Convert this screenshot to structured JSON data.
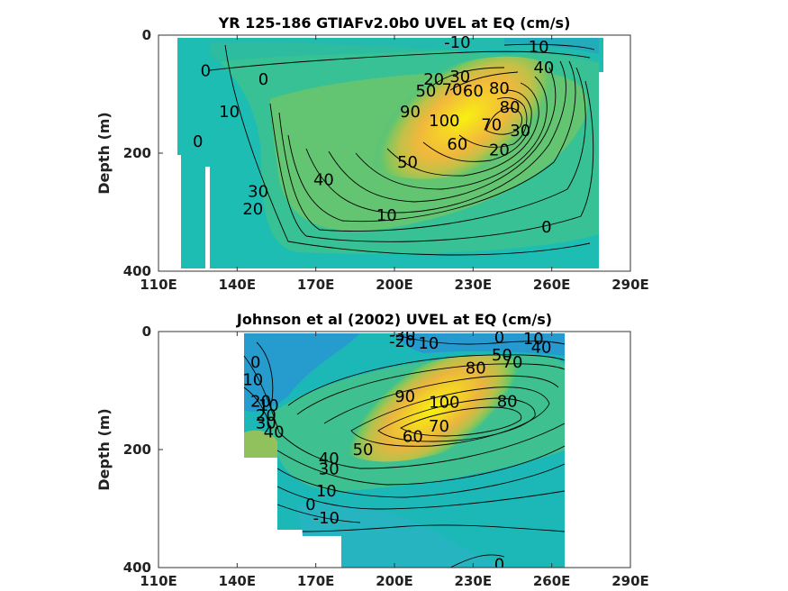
{
  "chart_data": [
    {
      "type": "heatmap",
      "title": "YR 125-186 GTIAFv2.0b0 UVEL at EQ (cm/s)",
      "ylabel": "Depth (m)",
      "xlabel": "",
      "x_ticks": [
        "110E",
        "140E",
        "170E",
        "200E",
        "230E",
        "260E",
        "290E"
      ],
      "x_tick_values": [
        110,
        140,
        170,
        200,
        230,
        260,
        290
      ],
      "y_ticks": [
        "0",
        "200",
        "400"
      ],
      "y_tick_values": [
        0,
        200,
        400
      ],
      "xlim": [
        110,
        290
      ],
      "ylim": [
        400,
        0
      ],
      "colormap": "parula",
      "core": {
        "x": 227,
        "y": 140,
        "max_value": 100
      },
      "contour_labels": [
        {
          "text": "-10",
          "x": 224,
          "y": 12
        },
        {
          "text": "10",
          "x": 255,
          "y": 20
        },
        {
          "text": "40",
          "x": 257,
          "y": 55
        },
        {
          "text": "0",
          "x": 128,
          "y": 60
        },
        {
          "text": "0",
          "x": 150,
          "y": 75
        },
        {
          "text": "20",
          "x": 215,
          "y": 75
        },
        {
          "text": "30",
          "x": 225,
          "y": 70
        },
        {
          "text": "50",
          "x": 212,
          "y": 95
        },
        {
          "text": "70",
          "x": 222,
          "y": 92
        },
        {
          "text": "60",
          "x": 230,
          "y": 95
        },
        {
          "text": "80",
          "x": 240,
          "y": 90
        },
        {
          "text": "10",
          "x": 137,
          "y": 130
        },
        {
          "text": "90",
          "x": 206,
          "y": 130
        },
        {
          "text": "100",
          "x": 219,
          "y": 145
        },
        {
          "text": "80",
          "x": 244,
          "y": 122
        },
        {
          "text": "70",
          "x": 237,
          "y": 152
        },
        {
          "text": "30",
          "x": 248,
          "y": 162
        },
        {
          "text": "20",
          "x": 240,
          "y": 195
        },
        {
          "text": "60",
          "x": 224,
          "y": 185
        },
        {
          "text": "50",
          "x": 205,
          "y": 215
        },
        {
          "text": "0",
          "x": 125,
          "y": 180
        },
        {
          "text": "40",
          "x": 173,
          "y": 245
        },
        {
          "text": "30",
          "x": 148,
          "y": 265
        },
        {
          "text": "20",
          "x": 146,
          "y": 295
        },
        {
          "text": "10",
          "x": 197,
          "y": 305
        },
        {
          "text": "0",
          "x": 258,
          "y": 325
        }
      ]
    },
    {
      "type": "heatmap",
      "title": "Johnson et al (2002) UVEL at EQ (cm/s)",
      "ylabel": "Depth (m)",
      "xlabel": "",
      "x_ticks": [
        "110E",
        "140E",
        "170E",
        "200E",
        "230E",
        "260E",
        "290E"
      ],
      "x_tick_values": [
        110,
        140,
        170,
        200,
        230,
        260,
        290
      ],
      "y_ticks": [
        "0",
        "200",
        "400"
      ],
      "y_tick_values": [
        0,
        200,
        400
      ],
      "xlim": [
        110,
        290
      ],
      "ylim": [
        400,
        0
      ],
      "colormap": "parula",
      "core": {
        "x": 215,
        "y": 130,
        "max_value": 100
      },
      "contour_labels": [
        {
          "text": "-30",
          "x": 203,
          "y": 5
        },
        {
          "text": "-20",
          "x": 203,
          "y": 17
        },
        {
          "text": "10",
          "x": 213,
          "y": 20
        },
        {
          "text": "0",
          "x": 240,
          "y": 10
        },
        {
          "text": "10",
          "x": 253,
          "y": 12
        },
        {
          "text": "40",
          "x": 256,
          "y": 27
        },
        {
          "text": "50",
          "x": 241,
          "y": 40
        },
        {
          "text": "70",
          "x": 245,
          "y": 52
        },
        {
          "text": "80",
          "x": 231,
          "y": 62
        },
        {
          "text": "0",
          "x": 147,
          "y": 52
        },
        {
          "text": "10",
          "x": 146,
          "y": 82
        },
        {
          "text": "20",
          "x": 149,
          "y": 118
        },
        {
          "text": "10",
          "x": 152,
          "y": 125
        },
        {
          "text": "20",
          "x": 151,
          "y": 142
        },
        {
          "text": "30",
          "x": 151,
          "y": 155
        },
        {
          "text": "40",
          "x": 154,
          "y": 170
        },
        {
          "text": "90",
          "x": 204,
          "y": 110
        },
        {
          "text": "100",
          "x": 219,
          "y": 120
        },
        {
          "text": "70",
          "x": 217,
          "y": 160
        },
        {
          "text": "60",
          "x": 207,
          "y": 178
        },
        {
          "text": "80",
          "x": 243,
          "y": 118
        },
        {
          "text": "50",
          "x": 188,
          "y": 200
        },
        {
          "text": "40",
          "x": 175,
          "y": 215
        },
        {
          "text": "30",
          "x": 175,
          "y": 233
        },
        {
          "text": "10",
          "x": 174,
          "y": 270
        },
        {
          "text": "0",
          "x": 168,
          "y": 293
        },
        {
          "text": "-10",
          "x": 174,
          "y": 316
        },
        {
          "text": "0",
          "x": 240,
          "y": 395
        }
      ]
    }
  ]
}
